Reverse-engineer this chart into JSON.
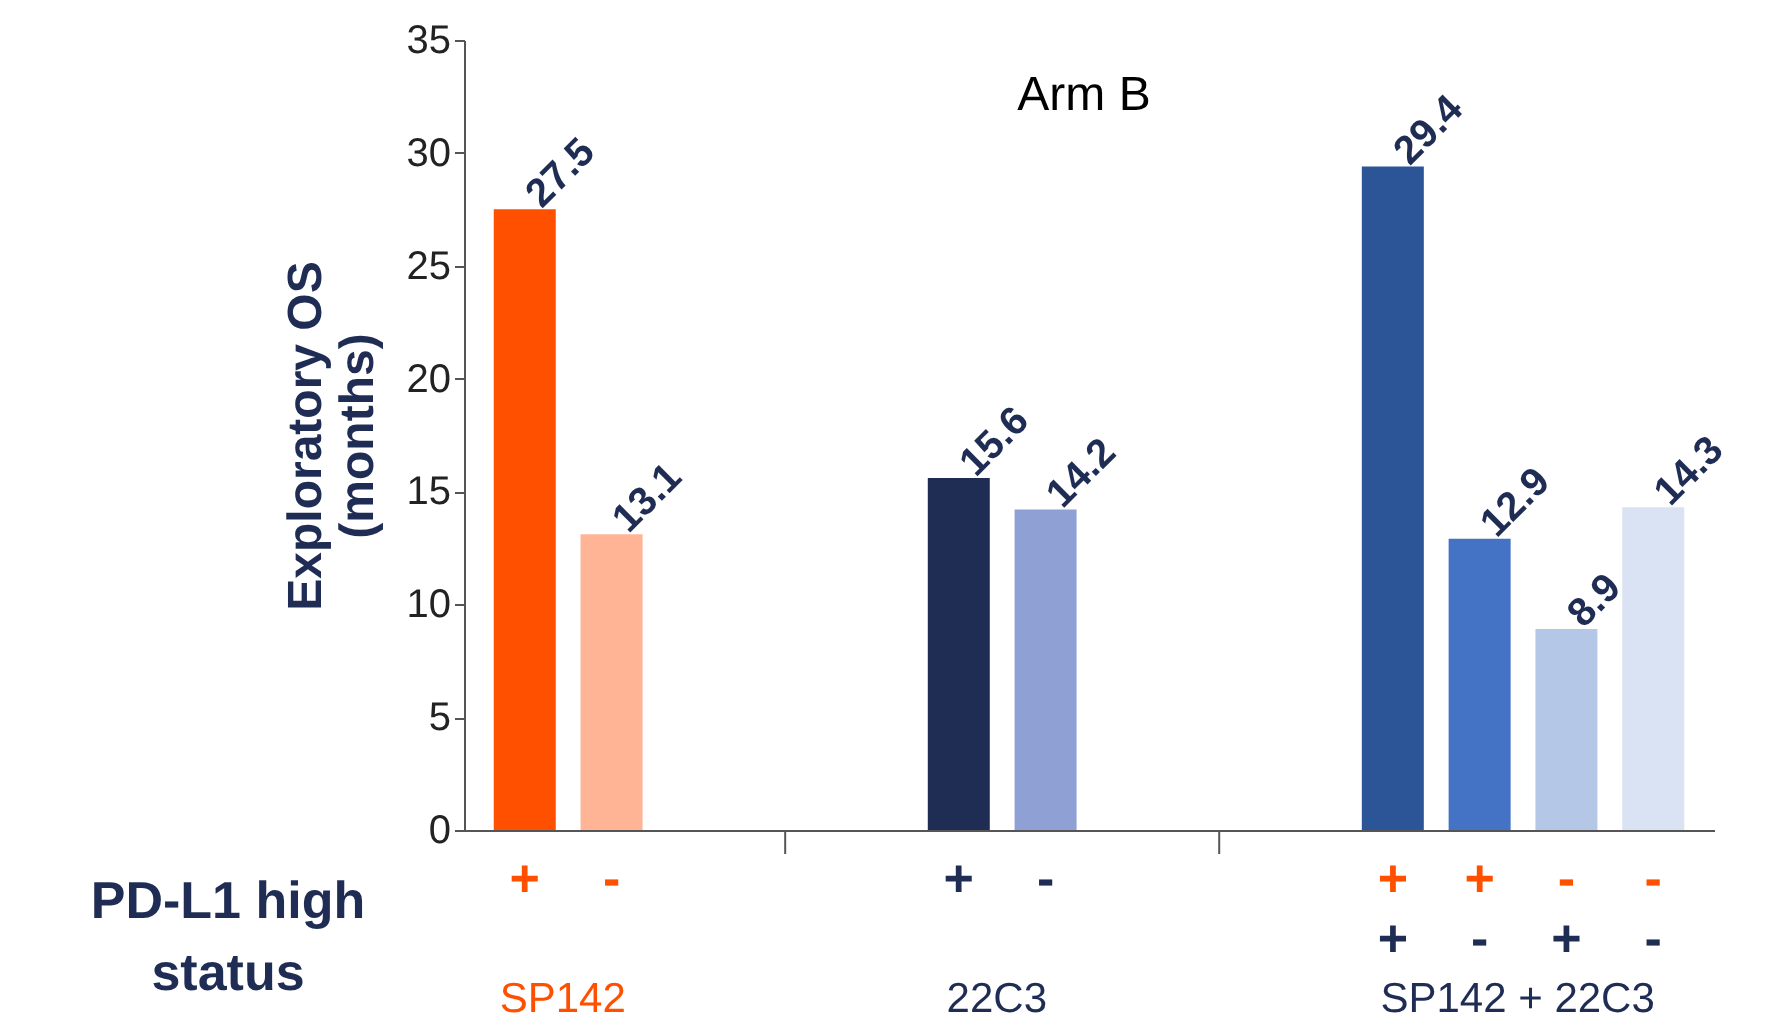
{
  "chart_data": {
    "type": "bar",
    "title": "Arm B",
    "ylabel": "Exploratory OS\n(months)",
    "xlabel": "PD-L1 high\nstatus",
    "categories": [
      "+",
      "-",
      null,
      null,
      null,
      "+",
      "-",
      null,
      null,
      null,
      "+\n+",
      "+\n-",
      "-\n+",
      "-\n-"
    ],
    "values": [
      27.5,
      13.1,
      null,
      null,
      null,
      15.6,
      14.2,
      null,
      null,
      null,
      29.4,
      12.9,
      8.9,
      14.3
    ],
    "colors": [
      "#ff5000",
      "#ffb496",
      null,
      null,
      null,
      "#1f2d54",
      "#8fa0d4",
      null,
      null,
      null,
      "#2c5597",
      "#4472c4",
      "#b4c7e7",
      "#dae3f3"
    ],
    "annotations": [
      "SP142",
      "22C3",
      "SP142 + 22C3"
    ],
    "ylim": [
      0,
      35
    ],
    "yticks": [
      0,
      5,
      10,
      15,
      20,
      25,
      30,
      35
    ],
    "grid": false,
    "data_labels": true
  }
}
